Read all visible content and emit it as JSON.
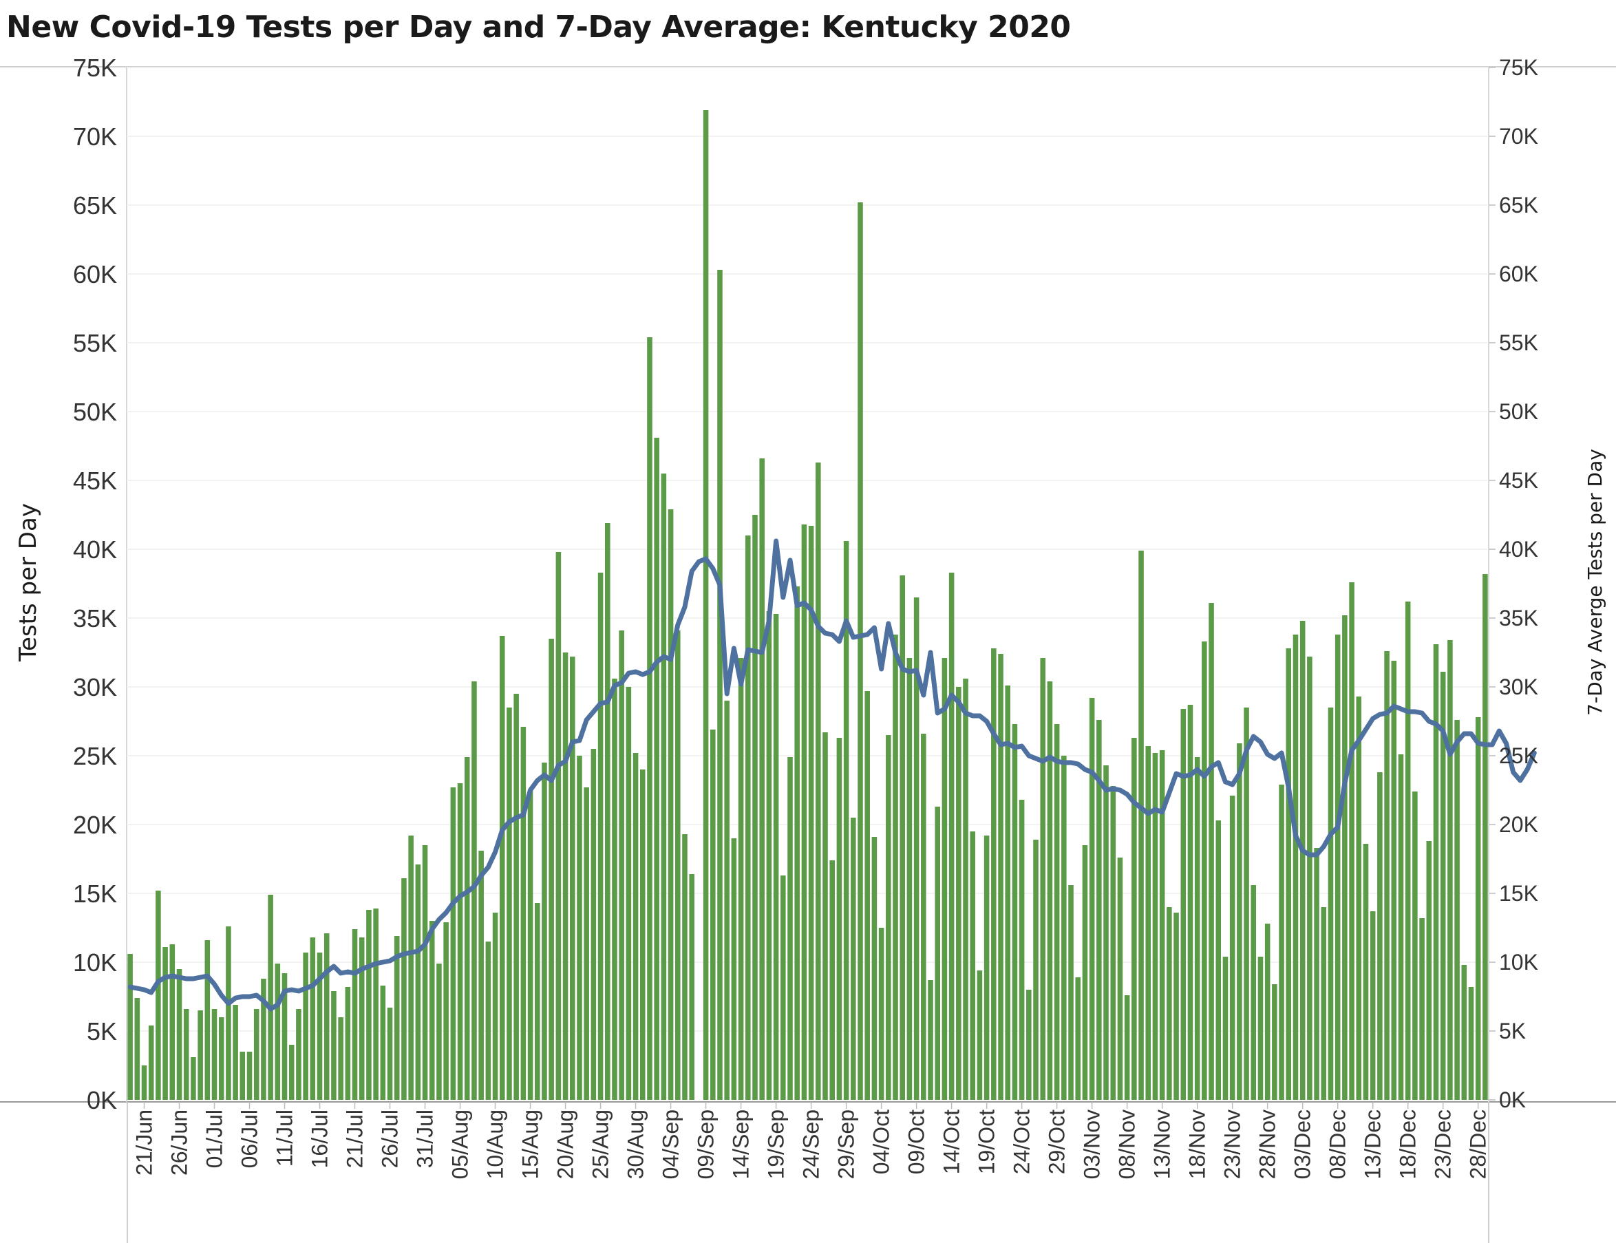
{
  "chart_data": {
    "type": "bar+line",
    "title": "New Covid-19 Tests per Day and 7-Day Average:  Kentucky 2020",
    "ylabel_left": "Tests per Day",
    "ylabel_right": "7-Day Averge Tests per Day",
    "ylim": [
      0,
      75000
    ],
    "yticks": [
      0,
      5000,
      10000,
      15000,
      20000,
      25000,
      30000,
      35000,
      40000,
      45000,
      50000,
      55000,
      60000,
      65000,
      70000,
      75000
    ],
    "ytick_labels_left": [
      "0K",
      "5K",
      "10K",
      "15K",
      "20K",
      "25K",
      "30K",
      "35K",
      "40K",
      "45K",
      "50K",
      "55K",
      "60K",
      "65K",
      "70K",
      "75K"
    ],
    "ytick_labels_right": [
      "0K",
      "5K",
      "10K",
      "15K",
      "20K",
      "25K",
      "30K",
      "35K",
      "40K",
      "45K",
      "50K",
      "55K",
      "60K",
      "65K",
      "70K",
      "75K"
    ],
    "start_date": "2020-06-19",
    "x_tick_labels": [
      "21/Jun",
      "26/Jun",
      "01/Jul",
      "06/Jul",
      "11/Jul",
      "16/Jul",
      "21/Jul",
      "26/Jul",
      "31/Jul",
      "05/Aug",
      "10/Aug",
      "15/Aug",
      "20/Aug",
      "25/Aug",
      "30/Aug",
      "04/Sep",
      "09/Sep",
      "14/Sep",
      "19/Sep",
      "24/Sep",
      "29/Sep",
      "04/Oct",
      "09/Oct",
      "14/Oct",
      "19/Oct",
      "24/Oct",
      "29/Oct",
      "03/Nov",
      "08/Nov",
      "13/Nov",
      "18/Nov",
      "23/Nov",
      "28/Nov",
      "03/Dec",
      "08/Dec",
      "13/Dec",
      "18/Dec",
      "23/Dec",
      "28/Dec"
    ],
    "grid": true,
    "series": [
      {
        "name": "Tests per Day",
        "kind": "bar",
        "color": "#5b9a47",
        "values": [
          10600,
          7400,
          2500,
          5400,
          15200,
          11100,
          11300,
          9500,
          6600,
          3100,
          6500,
          11600,
          6600,
          6000,
          12600,
          6900,
          3500,
          3500,
          6600,
          8800,
          14900,
          9900,
          9200,
          4000,
          6600,
          10700,
          11800,
          10700,
          12100,
          7900,
          6000,
          8200,
          12400,
          11800,
          13800,
          13900,
          8300,
          6700,
          11900,
          16100,
          19200,
          17100,
          18500,
          13000,
          9900,
          12900,
          22700,
          23000,
          24900,
          30400,
          18100,
          11500,
          13600,
          33700,
          28500,
          29500,
          27100,
          22500,
          14300,
          24500,
          33500,
          39800,
          32500,
          32200,
          25000,
          22700,
          25500,
          38300,
          41900,
          30600,
          34100,
          30000,
          25200,
          24000,
          55400,
          48100,
          45500,
          42900,
          34100,
          19300,
          16400,
          0,
          71900,
          26900,
          60300,
          29000,
          19000,
          32100,
          41000,
          42500,
          46600,
          35500,
          35300,
          16300,
          24900,
          37300,
          41800,
          41700,
          46300,
          26700,
          17400,
          26300,
          40600,
          20500,
          65200,
          29700,
          19100,
          12500,
          26500,
          33800,
          38100,
          32100,
          36500,
          26600,
          8700,
          21300,
          32100,
          38300,
          30000,
          30600,
          19500,
          9400,
          19200,
          32800,
          32400,
          30100,
          27300,
          21800,
          8000,
          18900,
          32100,
          30400,
          27300,
          25000,
          15600,
          8900,
          18500,
          29200,
          27600,
          24300,
          22800,
          17600,
          7600,
          26300,
          39900,
          25700,
          25200,
          25400,
          14000,
          13600,
          28400,
          28700,
          24900,
          33300,
          36100,
          20300,
          10400,
          22100,
          25900,
          28500,
          15600,
          10400,
          12800,
          8400,
          22900,
          32800,
          33800,
          34800,
          32200,
          18300,
          14000,
          28500,
          33800,
          35200,
          37600,
          29300,
          18600,
          13700,
          23800,
          32600,
          31900,
          25100,
          36200,
          22400,
          13200,
          18800,
          33100,
          31100,
          33400,
          27600,
          9800,
          8200,
          27800,
          38200
        ]
      },
      {
        "name": "7-Day Averge Tests per Day",
        "kind": "line",
        "color": "#4e71a0",
        "values": [
          8200,
          8100,
          8000,
          7800,
          8600,
          8900,
          9000,
          8900,
          8800,
          8800,
          8900,
          9000,
          8400,
          7600,
          7000,
          7400,
          7500,
          7500,
          7600,
          7200,
          6600,
          6900,
          7900,
          8000,
          7900,
          8100,
          8300,
          8800,
          9300,
          9700,
          9200,
          9300,
          9200,
          9500,
          9700,
          9900,
          10000,
          10100,
          10400,
          10600,
          10700,
          10800,
          11300,
          12400,
          13100,
          13600,
          14300,
          14800,
          15100,
          15500,
          16300,
          16900,
          18000,
          19600,
          20200,
          20500,
          20700,
          22500,
          23200,
          23600,
          23200,
          24300,
          24600,
          26000,
          26100,
          27600,
          28200,
          28800,
          28900,
          30100,
          30300,
          31000,
          31100,
          30900,
          31100,
          31800,
          32200,
          32000,
          34500,
          35800,
          38400,
          39100,
          39300,
          38600,
          37400,
          29500,
          32800,
          30200,
          32700,
          32600,
          32500,
          34800,
          40600,
          36500,
          39200,
          35900,
          36100,
          35600,
          34400,
          33900,
          33800,
          33300,
          34800,
          33600,
          33700,
          33800,
          34300,
          31300,
          34600,
          32500,
          31300,
          31100,
          31200,
          29400,
          32500,
          28100,
          28400,
          29400,
          28900,
          28100,
          27900,
          27900,
          27500,
          26600,
          25800,
          25900,
          25600,
          25700,
          25000,
          24800,
          24600,
          24900,
          24600,
          24500,
          24500,
          24400,
          24000,
          23800,
          23200,
          22500,
          22600,
          22500,
          22200,
          21600,
          21200,
          20800,
          21100,
          20900,
          22300,
          23700,
          23500,
          23600,
          24000,
          23500,
          24200,
          24500,
          23100,
          22900,
          23700,
          25400,
          26400,
          26000,
          25100,
          24800,
          25200,
          22700,
          19200,
          18100,
          17800,
          17800,
          18400,
          19300,
          19800,
          23000,
          25400,
          26100,
          26900,
          27700,
          28000,
          28100,
          28600,
          28400,
          28200,
          28200,
          28100,
          27500,
          27300,
          26800,
          25100,
          26000,
          26600,
          26600,
          25900,
          25800,
          25800,
          26800,
          25900,
          23800,
          23200,
          24000,
          25200
        ]
      }
    ]
  }
}
